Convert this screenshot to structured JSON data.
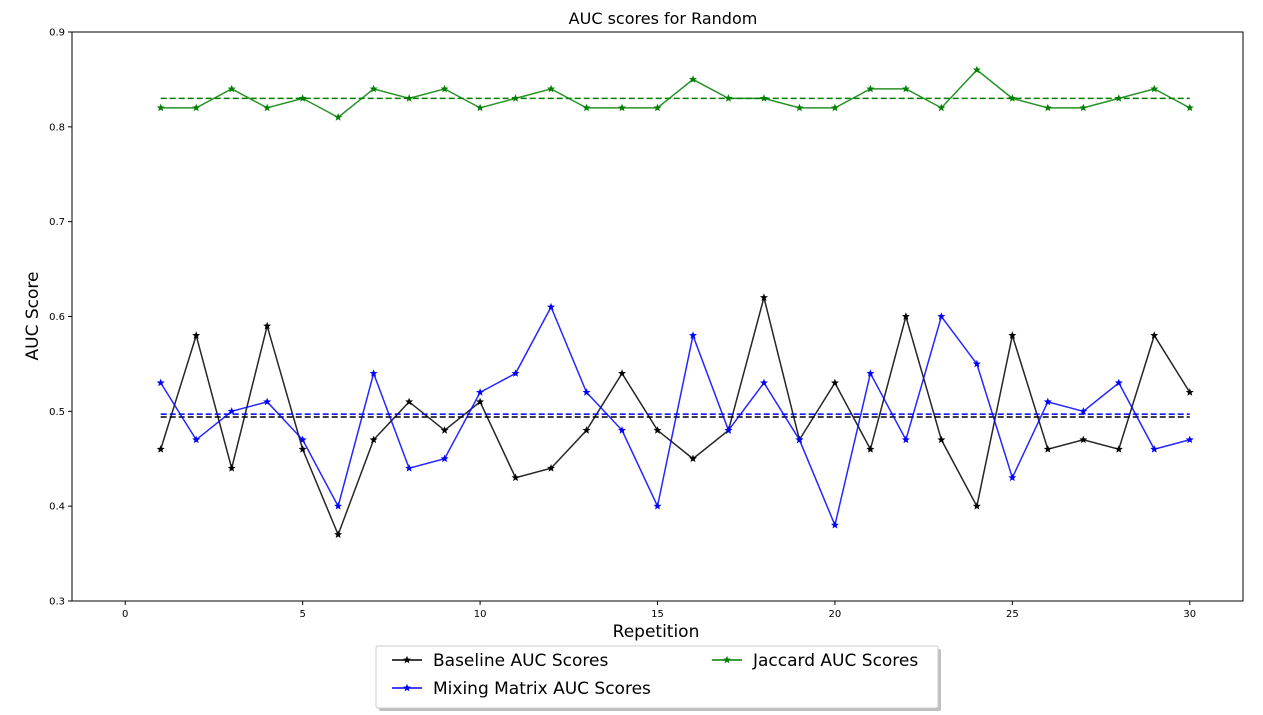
{
  "chart_data": {
    "type": "line",
    "title": "AUC scores for Random",
    "xlabel": "Repetition",
    "ylabel": "AUC Score",
    "xlim": [
      -1.5,
      31.5
    ],
    "ylim": [
      0.3,
      0.9
    ],
    "xticks": [
      0,
      5,
      10,
      15,
      20,
      25,
      30
    ],
    "yticks": [
      0.3,
      0.4,
      0.5,
      0.6,
      0.7,
      0.8,
      0.9
    ],
    "grid": false,
    "legend_position": "bottom-center",
    "x": [
      1,
      2,
      3,
      4,
      5,
      6,
      7,
      8,
      9,
      10,
      11,
      12,
      13,
      14,
      15,
      16,
      17,
      18,
      19,
      20,
      21,
      22,
      23,
      24,
      25,
      26,
      27,
      28,
      29,
      30
    ],
    "series": [
      {
        "name": "Baseline AUC Scores",
        "color": "#000000",
        "marker": "star",
        "values": [
          0.46,
          0.58,
          0.44,
          0.59,
          0.46,
          0.37,
          0.47,
          0.51,
          0.48,
          0.51,
          0.43,
          0.44,
          0.48,
          0.54,
          0.48,
          0.45,
          0.48,
          0.62,
          0.47,
          0.53,
          0.46,
          0.6,
          0.47,
          0.4,
          0.58,
          0.46,
          0.47,
          0.46,
          0.58,
          0.52
        ],
        "mean": 0.494
      },
      {
        "name": "Mixing Matrix AUC Scores",
        "color": "#0000ff",
        "marker": "star",
        "values": [
          0.53,
          0.47,
          0.5,
          0.51,
          0.47,
          0.4,
          0.54,
          0.44,
          0.45,
          0.52,
          0.54,
          0.61,
          0.52,
          0.48,
          0.4,
          0.58,
          0.48,
          0.53,
          0.47,
          0.38,
          0.54,
          0.47,
          0.6,
          0.55,
          0.43,
          0.51,
          0.5,
          0.53,
          0.46,
          0.47
        ],
        "mean": 0.497
      },
      {
        "name": "Jaccard AUC Scores",
        "color": "#008000",
        "marker": "star",
        "values": [
          0.82,
          0.82,
          0.84,
          0.82,
          0.83,
          0.81,
          0.84,
          0.83,
          0.84,
          0.82,
          0.83,
          0.84,
          0.82,
          0.82,
          0.82,
          0.85,
          0.83,
          0.83,
          0.82,
          0.82,
          0.84,
          0.84,
          0.82,
          0.86,
          0.83,
          0.82,
          0.82,
          0.83,
          0.84,
          0.82
        ],
        "mean": 0.83
      }
    ]
  }
}
